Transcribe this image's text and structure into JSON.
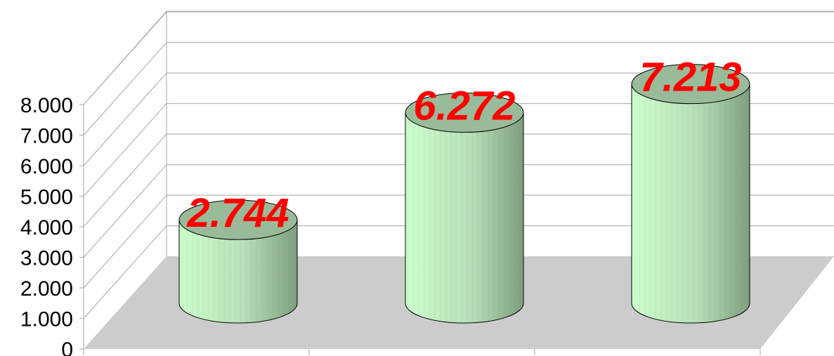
{
  "chart_data": {
    "type": "bar",
    "style": "3d-cylinder",
    "categories": [
      "",
      "",
      ""
    ],
    "values": [
      2744,
      6272,
      7213
    ],
    "data_labels": [
      "2.744",
      "6.272",
      "7.213"
    ],
    "y_tick_labels": [
      "0",
      "1.000",
      "2.000",
      "3.000",
      "4.000",
      "5.000",
      "6.000",
      "7.000",
      "8.000"
    ],
    "ylim": [
      0,
      8000
    ],
    "grid": true,
    "legend": "none",
    "title": "",
    "xlabel": "",
    "ylabel": "",
    "colors": {
      "bar_fill": "#ccffcc",
      "bar_shade": "#7f9f7f",
      "bar_top": "#99bb99",
      "floor": "#cccccc",
      "grid": "#b3b3b3",
      "data_label": "#ff0000"
    }
  }
}
